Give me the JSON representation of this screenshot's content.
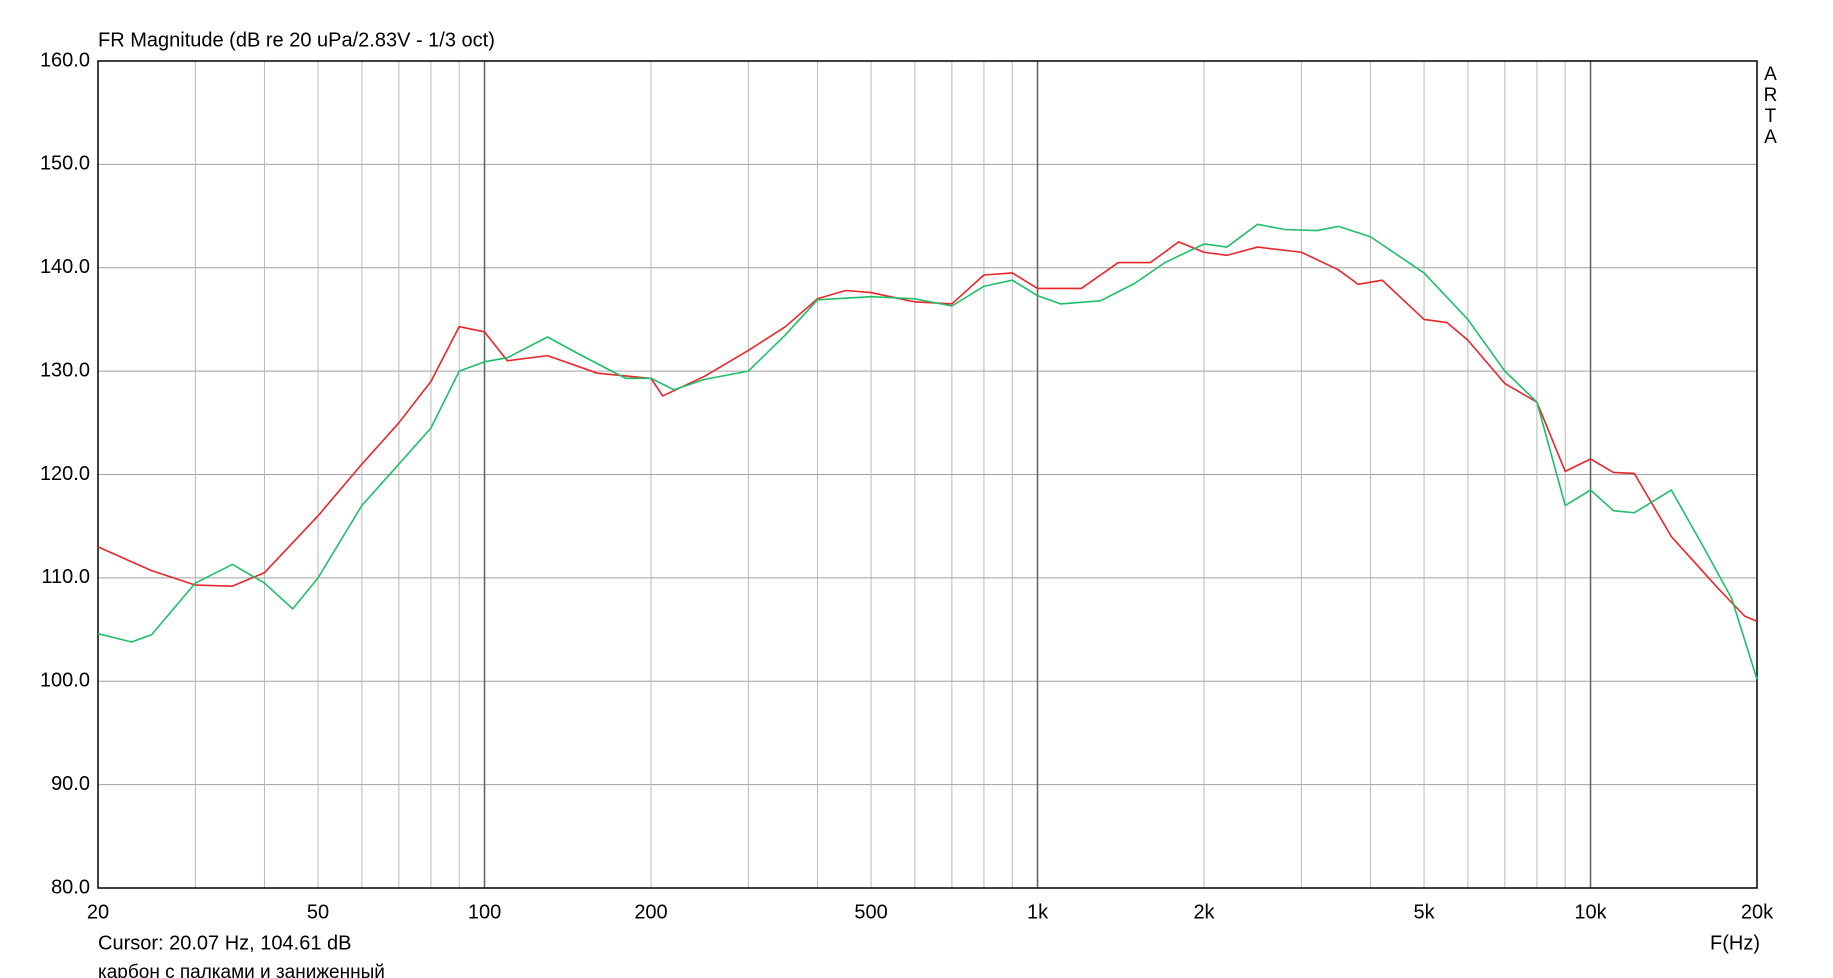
{
  "chart_data": {
    "type": "line",
    "title": "FR Magnitude (dB re 20 uPa/2.83V - 1/3 oct)",
    "watermark": "ARTA",
    "cursor_text": "Cursor: 20.07 Hz, 104.61 dB",
    "xlabel": "F(Hz)",
    "caption": "карбон с палками и заниженный",
    "xscale": "log",
    "grid": true,
    "xlim": [
      20,
      20000
    ],
    "ylim": [
      80,
      160
    ],
    "xticks": [
      20,
      50,
      100,
      200,
      500,
      {
        "value": 1000,
        "label": "1k"
      },
      {
        "value": 2000,
        "label": "2k"
      },
      {
        "value": 5000,
        "label": "5k"
      },
      {
        "value": 10000,
        "label": "10k"
      },
      {
        "value": 20000,
        "label": "20k"
      }
    ],
    "minor_xticks": [
      30,
      40,
      60,
      70,
      80,
      90,
      300,
      400,
      600,
      700,
      800,
      900,
      3000,
      4000,
      6000,
      7000,
      8000,
      9000
    ],
    "yticks": [
      {
        "value": 80,
        "label": "80.0"
      },
      {
        "value": 90,
        "label": "90.0"
      },
      {
        "value": 100,
        "label": "100.0"
      },
      {
        "value": 110,
        "label": "110.0"
      },
      {
        "value": 120,
        "label": "120.0"
      },
      {
        "value": 130,
        "label": "130.0"
      },
      {
        "value": 140,
        "label": "140.0"
      },
      {
        "value": 150,
        "label": "150.0"
      },
      {
        "value": 160,
        "label": "160.0"
      }
    ],
    "series": [
      {
        "color": "#e8262a",
        "x": [
          20,
          25,
          30,
          35,
          40,
          50,
          60,
          70,
          80,
          90,
          100,
          110,
          130,
          160,
          200,
          210,
          250,
          300,
          350,
          400,
          450,
          500,
          600,
          700,
          800,
          900,
          1000,
          1200,
          1400,
          1600,
          1800,
          2000,
          2200,
          2500,
          3000,
          3500,
          3800,
          4200,
          5000,
          5500,
          6000,
          7000,
          8000,
          9000,
          10000,
          11000,
          12000,
          14000,
          17000,
          19000,
          20000
        ],
        "values": [
          113,
          110.7,
          109.3,
          109.2,
          110.5,
          116,
          121,
          125,
          129,
          134.3,
          133.8,
          131,
          131.5,
          129.8,
          129.3,
          127.6,
          129.5,
          132,
          134.3,
          137,
          137.8,
          137.6,
          136.7,
          136.5,
          139.3,
          139.5,
          138,
          138,
          140.5,
          140.5,
          142.5,
          141.5,
          141.2,
          142,
          141.5,
          139.8,
          138.4,
          138.8,
          135,
          134.7,
          133,
          128.8,
          127,
          120.3,
          121.5,
          120.2,
          120.1,
          114,
          109,
          106.3,
          105.8
        ]
      },
      {
        "color": "#1fbf6a",
        "x": [
          20,
          23,
          25,
          30,
          35,
          40,
          45,
          50,
          60,
          70,
          80,
          90,
          100,
          110,
          130,
          150,
          180,
          200,
          220,
          250,
          300,
          350,
          400,
          500,
          600,
          700,
          800,
          900,
          1000,
          1100,
          1300,
          1500,
          1700,
          2000,
          2200,
          2500,
          2800,
          3200,
          3500,
          4000,
          5000,
          6000,
          7000,
          8000,
          9000,
          10000,
          11000,
          12000,
          14000,
          16000,
          18000,
          20000
        ],
        "values": [
          104.6,
          103.8,
          104.5,
          109.5,
          111.3,
          109.5,
          107,
          110,
          117,
          121,
          124.5,
          130,
          130.9,
          131.3,
          133.3,
          131.5,
          129.3,
          129.3,
          128.2,
          129.2,
          130,
          133.5,
          136.9,
          137.2,
          137,
          136.3,
          138.2,
          138.8,
          137.3,
          136.5,
          136.8,
          138.5,
          140.5,
          142.3,
          142,
          144.2,
          143.7,
          143.6,
          144,
          143,
          139.5,
          135,
          130,
          127,
          117,
          118.5,
          116.5,
          116.3,
          118.5,
          113,
          108,
          100.2
        ]
      }
    ]
  }
}
